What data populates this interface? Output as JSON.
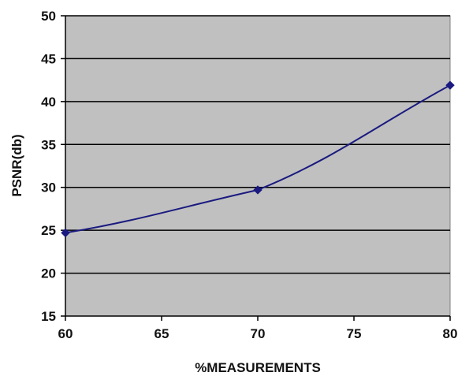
{
  "chart_data": {
    "type": "line",
    "title": "",
    "xlabel": "%MEASUREMENTS",
    "ylabel": "PSNR(db)",
    "xlim": [
      60,
      80
    ],
    "ylim": [
      15,
      50
    ],
    "xticks": [
      60,
      65,
      70,
      75,
      80
    ],
    "yticks": [
      15,
      20,
      25,
      30,
      35,
      40,
      45,
      50
    ],
    "grid": "horizontal",
    "legend": "none",
    "plot_background": "#c0c0c0",
    "gridline_color": "#000000",
    "series": [
      {
        "color": "#1a1a80",
        "marker": "diamond",
        "x": [
          60,
          70,
          80
        ],
        "y": [
          24.7,
          29.7,
          41.9
        ]
      }
    ]
  }
}
